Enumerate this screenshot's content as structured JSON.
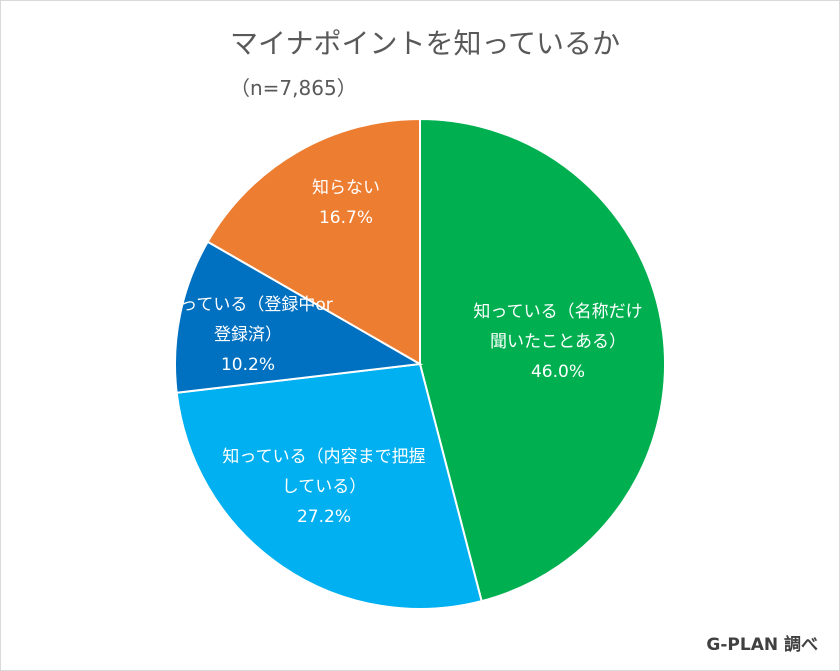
{
  "chart_data": {
    "type": "pie",
    "title": "マイナポイントを知っているか",
    "subtitle": "（n=7,865）",
    "slices": [
      {
        "label_lines": [
          "知っている（名称だけ",
          "聞いたことある）"
        ],
        "value": 46.0,
        "value_label": "46.0%",
        "color": "#00b050"
      },
      {
        "label_lines": [
          "知っている（内容まで把握",
          "している）"
        ],
        "value": 27.2,
        "value_label": "27.2%",
        "color": "#00b0f0"
      },
      {
        "label_lines": [
          "知っている（登録中or",
          "登録済）"
        ],
        "value": 10.2,
        "value_label": "10.2%",
        "color": "#0070c0"
      },
      {
        "label_lines": [
          "知らない"
        ],
        "value": 16.7,
        "value_label": "16.7%",
        "color": "#ed7d31"
      }
    ],
    "legend": "none",
    "start": "12 o'clock, clockwise"
  },
  "source_note": "G-PLAN 調べ"
}
